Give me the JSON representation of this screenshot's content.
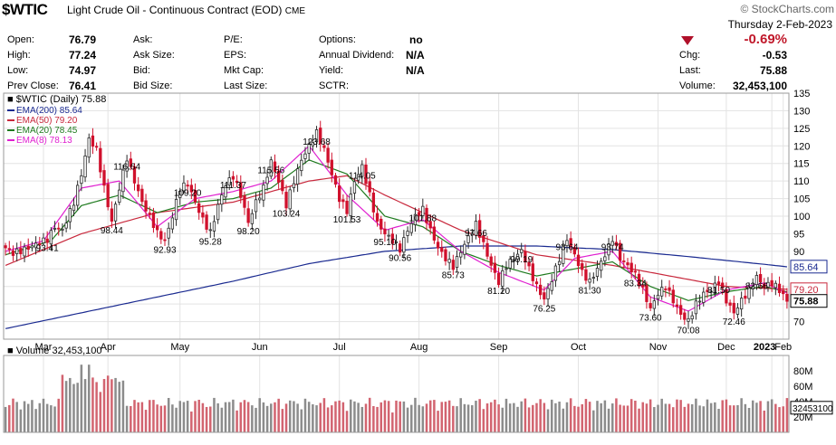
{
  "header": {
    "symbol": "$WTIC",
    "description": "Light Crude Oil - Continuous Contract (EOD)",
    "exchange": "CME",
    "watermark": "© StockCharts.com",
    "date": "Thursday  2-Feb-2023",
    "change_pct": "-0.69%",
    "fields": {
      "open_label": "Open:",
      "open": "76.79",
      "high_label": "High:",
      "high": "77.24",
      "low_label": "Low:",
      "low": "74.97",
      "prev_label": "Prev Close:",
      "prev": "76.41",
      "ask_label": "Ask:",
      "asksize_label": "Ask Size:",
      "bid_label": "Bid:",
      "bidsize_label": "Bid Size:",
      "pe_label": "P/E:",
      "eps_label": "EPS:",
      "mktcap_label": "Mkt Cap:",
      "lastsize_label": "Last Size:",
      "options_label": "Options:",
      "options": "no",
      "div_label": "Annual Dividend:",
      "div": "N/A",
      "yield_label": "Yield:",
      "yield": "N/A",
      "sctr_label": "SCTR:",
      "chg_label": "Chg:",
      "chg": "-0.53",
      "last_label": "Last:",
      "last": "75.88",
      "volume_label": "Volume:",
      "volume": "32,453,100"
    }
  },
  "colors": {
    "up": "#2a2a2a",
    "down": "#d0102c",
    "ema200": "#1a2a90",
    "ema50": "#c8283c",
    "ema20": "#1e7a1e",
    "ema8": "#e020d0",
    "grid": "#e3e3e3",
    "vol_up": "#8c8c8c",
    "vol_down": "#d26470"
  },
  "chart_data": {
    "type": "candlestick",
    "title": "$WTIC (Daily) 75.88",
    "y_axis": {
      "min": 65,
      "max": 135,
      "ticks": [
        70,
        75,
        80,
        85,
        90,
        95,
        100,
        105,
        110,
        115,
        120,
        125,
        130,
        135
      ],
      "side": "right"
    },
    "x_labels": [
      "Mar",
      "Apr",
      "May",
      "Jun",
      "Jul",
      "Aug",
      "Sep",
      "Oct",
      "Nov",
      "Dec",
      "2023",
      "Feb"
    ],
    "legend": [
      {
        "name": "EMA(200) 85.64",
        "color": "#1a2a90"
      },
      {
        "name": "EMA(50) 79.20",
        "color": "#c8283c"
      },
      {
        "name": "EMA(20) 78.45",
        "color": "#1e7a1e"
      },
      {
        "name": "EMA(8) 78.13",
        "color": "#e020d0"
      }
    ],
    "price_path": [
      [
        0,
        91.0
      ],
      [
        2,
        89.5
      ],
      [
        5,
        90.5
      ],
      [
        8,
        92.0
      ],
      [
        11,
        93.4
      ],
      [
        13,
        97.0
      ],
      [
        15,
        96.0
      ],
      [
        18,
        104.0
      ],
      [
        20,
        112.0
      ],
      [
        22,
        122.0
      ],
      [
        24,
        119.0
      ],
      [
        26,
        108.0
      ],
      [
        28,
        98.4
      ],
      [
        30,
        108.0
      ],
      [
        32,
        116.6
      ],
      [
        34,
        110.0
      ],
      [
        36,
        104.0
      ],
      [
        38,
        100.0
      ],
      [
        40,
        95.3
      ],
      [
        42,
        92.9
      ],
      [
        44,
        100.0
      ],
      [
        46,
        108.0
      ],
      [
        48,
        109.2
      ],
      [
        50,
        104.0
      ],
      [
        52,
        99.0
      ],
      [
        54,
        95.3
      ],
      [
        56,
        103.0
      ],
      [
        58,
        109.0
      ],
      [
        60,
        111.4
      ],
      [
        62,
        106.0
      ],
      [
        64,
        98.2
      ],
      [
        66,
        104.0
      ],
      [
        68,
        108.0
      ],
      [
        70,
        115.6
      ],
      [
        72,
        110.0
      ],
      [
        74,
        103.2
      ],
      [
        76,
        110.0
      ],
      [
        78,
        116.0
      ],
      [
        80,
        120.0
      ],
      [
        82,
        123.7
      ],
      [
        84,
        119.0
      ],
      [
        86,
        112.0
      ],
      [
        88,
        105.0
      ],
      [
        90,
        101.5
      ],
      [
        92,
        110.0
      ],
      [
        94,
        114.1
      ],
      [
        96,
        106.0
      ],
      [
        98,
        98.0
      ],
      [
        100,
        95.1
      ],
      [
        102,
        93.0
      ],
      [
        104,
        90.6
      ],
      [
        106,
        96.0
      ],
      [
        108,
        100.0
      ],
      [
        110,
        101.9
      ],
      [
        112,
        96.0
      ],
      [
        114,
        91.0
      ],
      [
        116,
        88.0
      ],
      [
        118,
        85.7
      ],
      [
        120,
        90.0
      ],
      [
        122,
        94.0
      ],
      [
        124,
        97.7
      ],
      [
        126,
        92.0
      ],
      [
        128,
        86.0
      ],
      [
        130,
        81.2
      ],
      [
        132,
        86.0
      ],
      [
        134,
        88.0
      ],
      [
        136,
        90.2
      ],
      [
        138,
        85.0
      ],
      [
        140,
        80.0
      ],
      [
        142,
        76.3
      ],
      [
        144,
        82.0
      ],
      [
        146,
        88.0
      ],
      [
        148,
        93.6
      ],
      [
        150,
        89.0
      ],
      [
        152,
        84.0
      ],
      [
        154,
        81.3
      ],
      [
        156,
        85.0
      ],
      [
        158,
        89.0
      ],
      [
        160,
        93.7
      ],
      [
        162,
        88.0
      ],
      [
        164,
        86.0
      ],
      [
        166,
        83.3
      ],
      [
        168,
        79.0
      ],
      [
        170,
        73.6
      ],
      [
        172,
        78.0
      ],
      [
        174,
        80.0
      ],
      [
        176,
        76.0
      ],
      [
        178,
        72.0
      ],
      [
        180,
        70.1
      ],
      [
        182,
        75.0
      ],
      [
        184,
        78.0
      ],
      [
        186,
        79.0
      ],
      [
        188,
        81.5
      ],
      [
        190,
        76.0
      ],
      [
        192,
        72.5
      ],
      [
        194,
        76.0
      ],
      [
        196,
        79.0
      ],
      [
        198,
        82.7
      ],
      [
        200,
        80.0
      ],
      [
        202,
        81.0
      ],
      [
        204,
        79.0
      ],
      [
        206,
        75.9
      ]
    ],
    "price_labels": [
      {
        "text": "116.64",
        "x": 32,
        "y": 116.64
      },
      {
        "text": "123.68",
        "x": 82,
        "y": 123.68
      },
      {
        "text": "109.20",
        "x": 48,
        "y": 109.2
      },
      {
        "text": "111.37",
        "x": 60,
        "y": 111.37
      },
      {
        "text": "115.56",
        "x": 70,
        "y": 115.56
      },
      {
        "text": "114.05",
        "x": 94,
        "y": 114.05
      },
      {
        "text": "101.88",
        "x": 110,
        "y": 101.88
      },
      {
        "text": "97.66",
        "x": 124,
        "y": 97.66
      },
      {
        "text": "93.64",
        "x": 148,
        "y": 93.64
      },
      {
        "text": "93.74",
        "x": 160,
        "y": 93.74
      },
      {
        "text": "83.34",
        "x": 166,
        "y": 83.34
      },
      {
        "text": "81.50",
        "x": 188,
        "y": 81.5
      },
      {
        "text": "82.66",
        "x": 198,
        "y": 82.66
      },
      {
        "text": "93.41",
        "x": 11,
        "y": 93.41
      },
      {
        "text": "98.44",
        "x": 28,
        "y": 98.44
      },
      {
        "text": "92.93",
        "x": 42,
        "y": 92.93
      },
      {
        "text": "95.28",
        "x": 54,
        "y": 95.28
      },
      {
        "text": "98.20",
        "x": 64,
        "y": 98.2
      },
      {
        "text": "103.24",
        "x": 74,
        "y": 103.24
      },
      {
        "text": "101.53",
        "x": 90,
        "y": 101.53
      },
      {
        "text": "95.10",
        "x": 100,
        "y": 95.1
      },
      {
        "text": "90.56",
        "x": 104,
        "y": 90.56
      },
      {
        "text": "85.73",
        "x": 118,
        "y": 85.73
      },
      {
        "text": "90.19",
        "x": 136,
        "y": 90.19
      },
      {
        "text": "81.20",
        "x": 130,
        "y": 81.2
      },
      {
        "text": "76.25",
        "x": 142,
        "y": 76.25
      },
      {
        "text": "81.30",
        "x": 154,
        "y": 81.3
      },
      {
        "text": "73.60",
        "x": 170,
        "y": 73.6
      },
      {
        "text": "70.08",
        "x": 180,
        "y": 70.08
      },
      {
        "text": "72.46",
        "x": 192,
        "y": 72.46
      }
    ],
    "right_tags": [
      {
        "text": "85.64",
        "y": 85.64,
        "bg": "#ffffff",
        "fg": "#1a2a90",
        "border": "#1a2a90"
      },
      {
        "text": "79.20",
        "y": 79.2,
        "bg": "#ffffff",
        "fg": "#c8283c",
        "border": "#c8283c"
      },
      {
        "text": "75.88",
        "y": 75.88,
        "bg": "#ffffff",
        "fg": "#000000",
        "border": "#000000"
      }
    ],
    "ema": {
      "ema200": [
        [
          0,
          68.0
        ],
        [
          20,
          72.5
        ],
        [
          40,
          77.0
        ],
        [
          60,
          81.5
        ],
        [
          80,
          86.5
        ],
        [
          100,
          90.0
        ],
        [
          120,
          91.5
        ],
        [
          140,
          91.5
        ],
        [
          160,
          90.5
        ],
        [
          180,
          88.5
        ],
        [
          200,
          86.3
        ],
        [
          206,
          85.6
        ]
      ],
      "ema50": [
        [
          0,
          86.0
        ],
        [
          20,
          95.0
        ],
        [
          40,
          101.0
        ],
        [
          60,
          104.0
        ],
        [
          80,
          110.0
        ],
        [
          90,
          111.5
        ],
        [
          100,
          106.0
        ],
        [
          120,
          96.0
        ],
        [
          140,
          89.0
        ],
        [
          160,
          86.0
        ],
        [
          175,
          83.0
        ],
        [
          190,
          80.0
        ],
        [
          206,
          79.2
        ]
      ],
      "ema20": [
        [
          0,
          89.0
        ],
        [
          12,
          93.0
        ],
        [
          20,
          103.0
        ],
        [
          30,
          106.0
        ],
        [
          40,
          101.0
        ],
        [
          50,
          104.0
        ],
        [
          60,
          105.0
        ],
        [
          70,
          108.0
        ],
        [
          80,
          116.0
        ],
        [
          90,
          112.0
        ],
        [
          100,
          100.0
        ],
        [
          110,
          97.0
        ],
        [
          120,
          90.0
        ],
        [
          130,
          86.0
        ],
        [
          140,
          83.0
        ],
        [
          150,
          85.0
        ],
        [
          160,
          87.0
        ],
        [
          170,
          80.0
        ],
        [
          180,
          76.0
        ],
        [
          190,
          78.5
        ],
        [
          200,
          80.0
        ],
        [
          206,
          78.45
        ]
      ],
      "ema8": [
        [
          0,
          90.0
        ],
        [
          10,
          93.0
        ],
        [
          20,
          108.0
        ],
        [
          30,
          110.0
        ],
        [
          40,
          97.0
        ],
        [
          50,
          105.0
        ],
        [
          60,
          107.0
        ],
        [
          70,
          110.0
        ],
        [
          80,
          120.0
        ],
        [
          90,
          106.0
        ],
        [
          100,
          96.0
        ],
        [
          110,
          99.0
        ],
        [
          120,
          90.0
        ],
        [
          130,
          84.0
        ],
        [
          142,
          79.0
        ],
        [
          150,
          88.0
        ],
        [
          160,
          90.0
        ],
        [
          170,
          77.0
        ],
        [
          180,
          73.0
        ],
        [
          190,
          79.0
        ],
        [
          200,
          81.0
        ],
        [
          206,
          78.13
        ]
      ]
    },
    "volume": {
      "title": "Volume 32,453,100",
      "y_ticks": [
        "80M",
        "60M",
        "40M",
        "20M"
      ],
      "tick_values": [
        80,
        60,
        40,
        20
      ],
      "max": 100,
      "current_tag": "32453100"
    }
  }
}
